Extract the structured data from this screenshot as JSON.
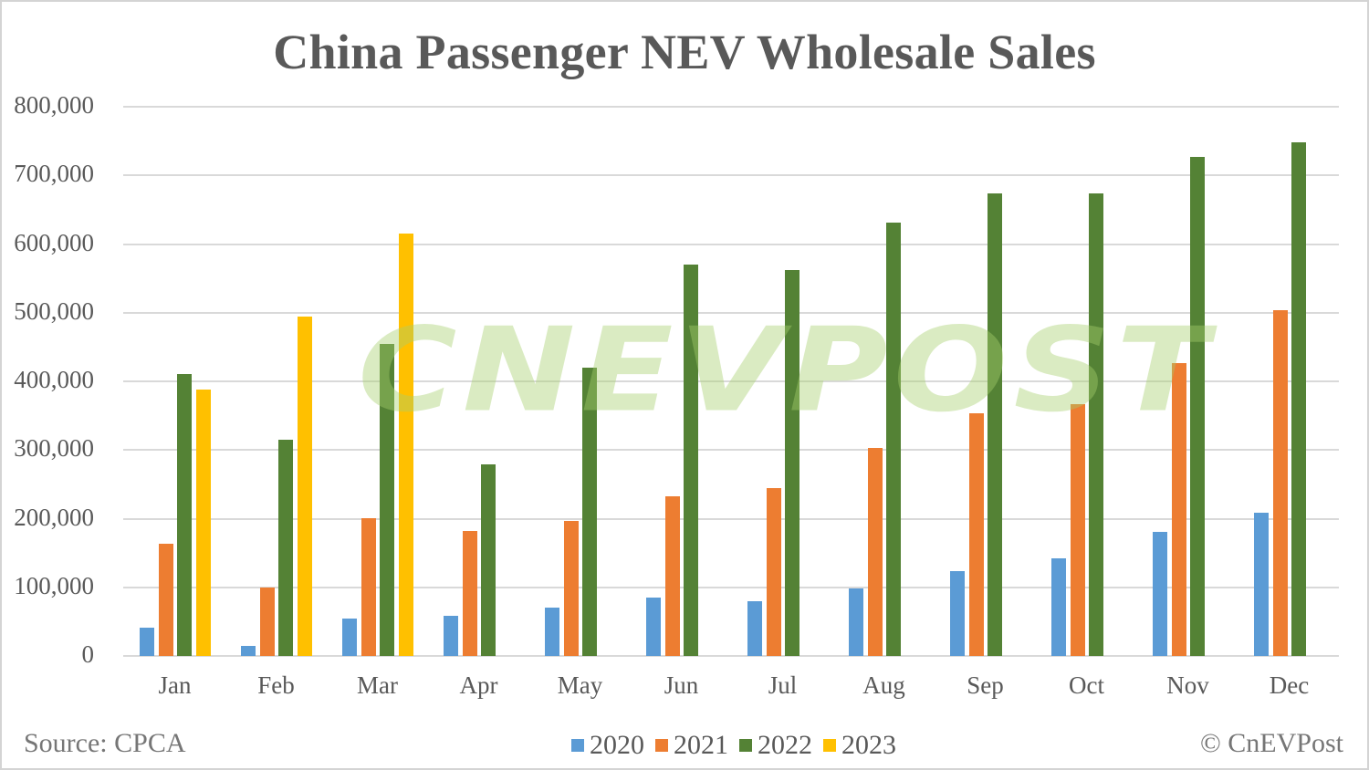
{
  "title": "China Passenger NEV Wholesale Sales",
  "watermark": "CNEVPOST",
  "source": "Source: CPCA",
  "copyright": "© CnEVPost",
  "legend": [
    {
      "label": "2020",
      "color": "#5b9bd5"
    },
    {
      "label": "2021",
      "color": "#ed7d31"
    },
    {
      "label": "2022",
      "color": "#548235"
    },
    {
      "label": "2023",
      "color": "#ffc000"
    }
  ],
  "y_axis": {
    "ticks": [
      "800,000",
      "700,000",
      "600,000",
      "500,000",
      "400,000",
      "300,000",
      "200,000",
      "100,000",
      "0"
    ]
  },
  "x_axis": {
    "ticks": [
      "Jan",
      "Feb",
      "Mar",
      "Apr",
      "May",
      "Jun",
      "Jul",
      "Aug",
      "Sep",
      "Oct",
      "Nov",
      "Dec"
    ]
  },
  "chart_data": {
    "type": "bar",
    "title": "China Passenger NEV Wholesale Sales",
    "xlabel": "",
    "ylabel": "",
    "ylim": [
      0,
      800000
    ],
    "grid": true,
    "legend_position": "bottom",
    "categories": [
      "Jan",
      "Feb",
      "Mar",
      "Apr",
      "May",
      "Jun",
      "Jul",
      "Aug",
      "Sep",
      "Oct",
      "Nov",
      "Dec"
    ],
    "series": [
      {
        "name": "2020",
        "color": "#5b9bd5",
        "values": [
          41000,
          15000,
          55000,
          59000,
          70000,
          85000,
          80000,
          98000,
          124000,
          142000,
          181000,
          208000
        ]
      },
      {
        "name": "2021",
        "color": "#ed7d31",
        "values": [
          164000,
          100000,
          201000,
          182000,
          197000,
          233000,
          245000,
          303000,
          353000,
          367000,
          427000,
          504000
        ]
      },
      {
        "name": "2022",
        "color": "#548235",
        "values": [
          411000,
          315000,
          455000,
          279000,
          420000,
          570000,
          562000,
          631000,
          674000,
          674000,
          727000,
          748000
        ]
      },
      {
        "name": "2023",
        "color": "#ffc000",
        "values": [
          388000,
          494000,
          615000,
          null,
          null,
          null,
          null,
          null,
          null,
          null,
          null,
          null
        ]
      }
    ],
    "annotations": [
      "Source: CPCA",
      "© CnEVPost",
      "CNEVPOST watermark"
    ]
  }
}
